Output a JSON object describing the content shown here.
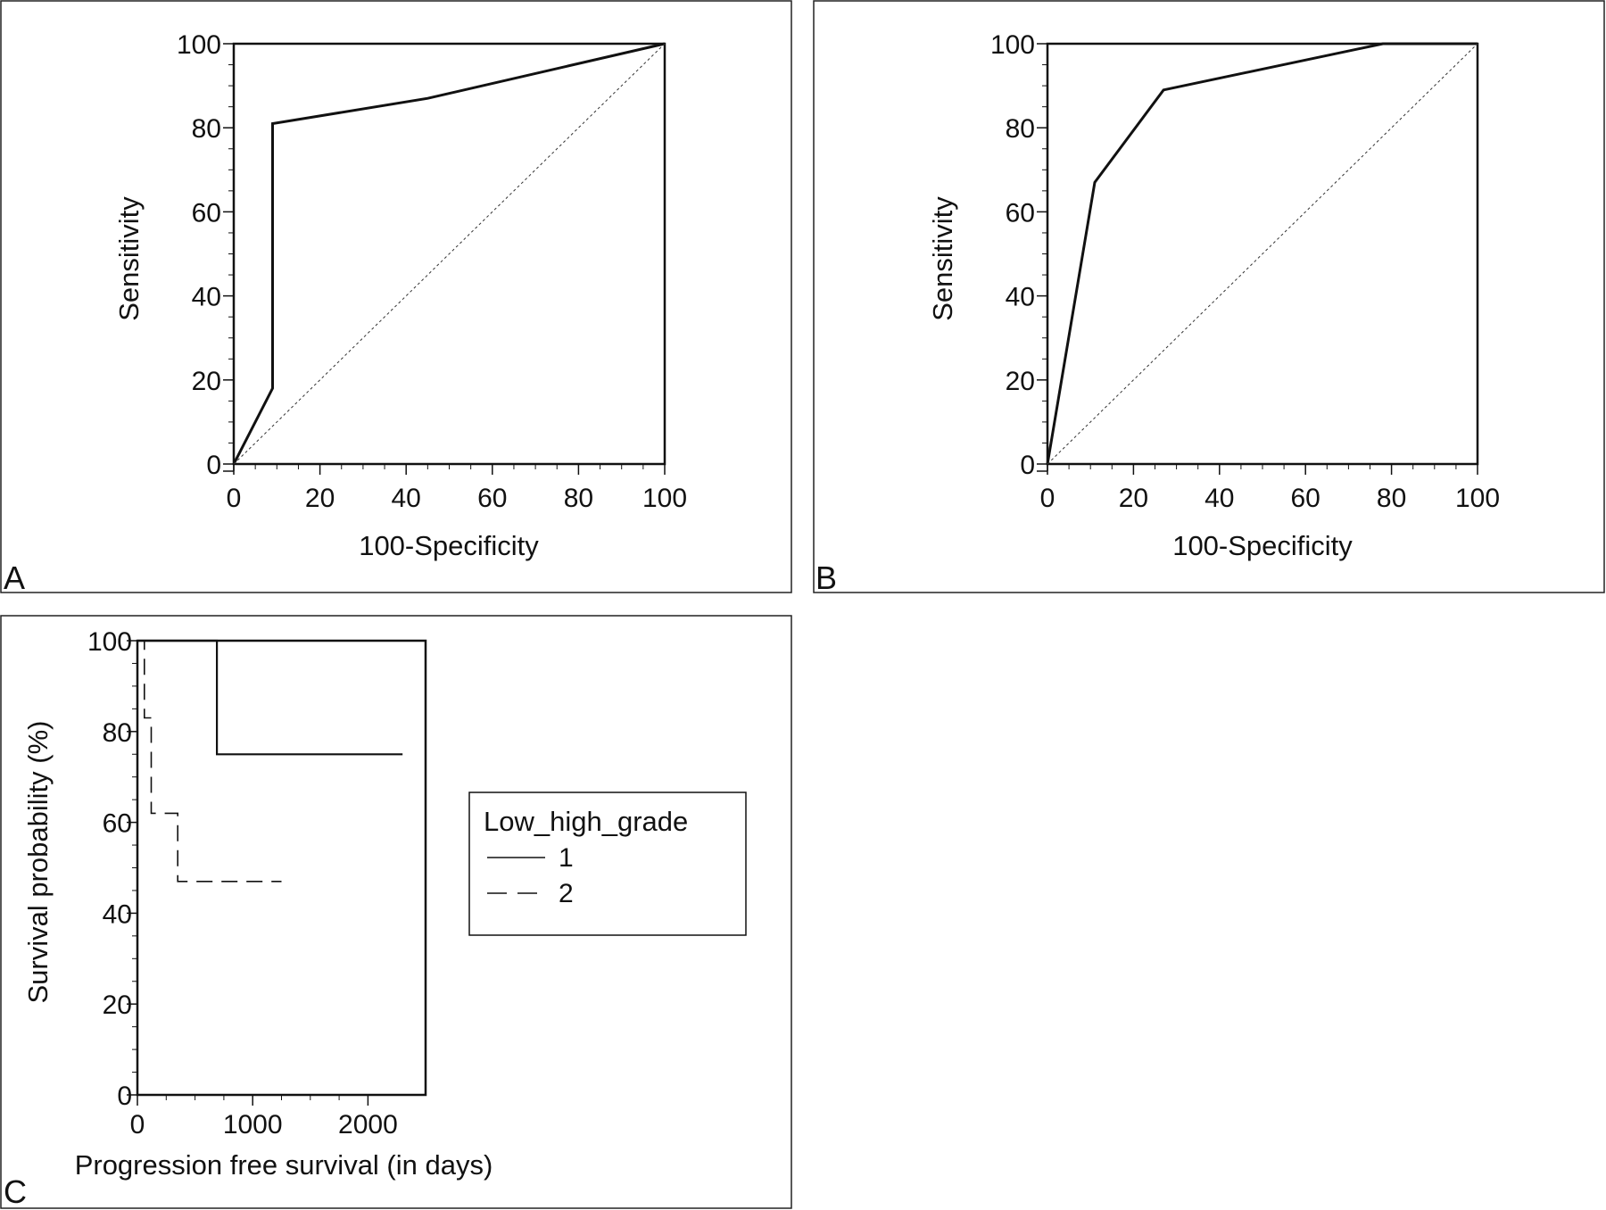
{
  "chart_data": [
    {
      "panel": "A",
      "type": "line",
      "xlabel": "100-Specificity",
      "ylabel": "Sensitivity",
      "xlim": [
        0,
        100
      ],
      "ylim": [
        0,
        100
      ],
      "xticks": [
        0,
        20,
        40,
        60,
        80,
        100
      ],
      "yticks": [
        0,
        20,
        40,
        60,
        80,
        100
      ],
      "series": [
        {
          "x": [
            0,
            9,
            9,
            45,
            100
          ],
          "y": [
            0,
            18,
            81,
            87,
            100
          ],
          "style": "solid-thick"
        },
        {
          "x": [
            0,
            100
          ],
          "y": [
            0,
            100
          ],
          "style": "dotted-diagonal"
        }
      ]
    },
    {
      "panel": "B",
      "type": "line",
      "xlabel": "100-Specificity",
      "ylabel": "Sensitivity",
      "xlim": [
        0,
        100
      ],
      "ylim": [
        0,
        100
      ],
      "xticks": [
        0,
        20,
        40,
        60,
        80,
        100
      ],
      "yticks": [
        0,
        20,
        40,
        60,
        80,
        100
      ],
      "series": [
        {
          "x": [
            0,
            11,
            27,
            78,
            100
          ],
          "y": [
            0,
            67,
            89,
            100,
            100
          ],
          "style": "solid-thick"
        },
        {
          "x": [
            0,
            100
          ],
          "y": [
            0,
            100
          ],
          "style": "dotted-diagonal"
        }
      ]
    },
    {
      "panel": "C",
      "type": "line",
      "xlabel": "Progression free survival (in days)",
      "ylabel": "Survival probability (%)",
      "xlim": [
        0,
        2500
      ],
      "ylim": [
        0,
        100
      ],
      "xticks": [
        0,
        1000,
        2000
      ],
      "yticks": [
        0,
        20,
        40,
        60,
        80,
        100
      ],
      "legend": {
        "title": "Low_high_grade",
        "placement": "right, outside plot",
        "entries": [
          "1",
          "2"
        ]
      },
      "series": [
        {
          "name": "1",
          "x": [
            0,
            690,
            690,
            2300
          ],
          "y": [
            100,
            100,
            75,
            75
          ],
          "style": "solid"
        },
        {
          "name": "2",
          "x": [
            0,
            60,
            60,
            120,
            120,
            350,
            350,
            1250
          ],
          "y": [
            100,
            100,
            83,
            83,
            62,
            62,
            47,
            47
          ],
          "style": "dashed"
        }
      ]
    }
  ]
}
